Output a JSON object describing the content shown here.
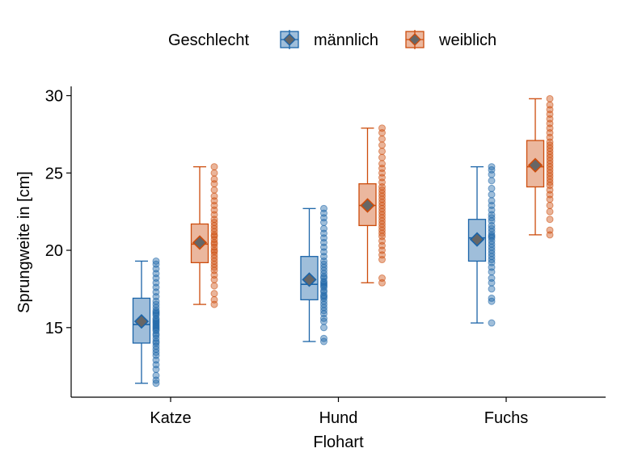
{
  "chart_data": {
    "type": "boxplot",
    "xlabel": "Flohart",
    "ylabel": "Sprungweite in [cm]",
    "categories": [
      "Katze",
      "Hund",
      "Fuchs"
    ],
    "ylim": [
      10.5,
      30.6
    ],
    "yticks": [
      15,
      20,
      25,
      30
    ],
    "grid": false,
    "legend": {
      "title": "Geschlecht",
      "position": "top",
      "entries": [
        "männlich",
        "weiblich"
      ]
    },
    "series": [
      {
        "name": "männlich",
        "color": "#1b64a8",
        "boxes": [
          {
            "category": "Katze",
            "min": 11.4,
            "q1": 14.0,
            "median": 15.2,
            "q3": 16.9,
            "max": 19.3,
            "mean": 15.4
          },
          {
            "category": "Hund",
            "min": 14.1,
            "q1": 16.8,
            "median": 17.8,
            "q3": 19.6,
            "max": 22.7,
            "mean": 18.1
          },
          {
            "category": "Fuchs",
            "min": 15.3,
            "q1": 19.3,
            "median": 20.8,
            "q3": 22.0,
            "max": 25.4,
            "mean": 20.7
          }
        ],
        "points": [
          [
            11.4,
            11.6,
            11.9,
            12.3,
            12.6,
            12.9,
            13.2,
            13.4,
            13.6,
            13.8,
            14.0,
            14.1,
            14.3,
            14.5,
            14.6,
            14.8,
            14.9,
            15.0,
            15.1,
            15.2,
            15.3,
            15.4,
            15.5,
            15.6,
            15.8,
            15.9,
            16.0,
            16.1,
            16.3,
            16.5,
            16.7,
            17.0,
            17.3,
            17.6,
            17.9,
            18.2,
            18.5,
            18.8,
            19.1,
            19.3
          ],
          [
            14.1,
            14.3,
            15.0,
            15.4,
            15.6,
            15.9,
            16.1,
            16.3,
            16.5,
            16.7,
            16.9,
            17.0,
            17.1,
            17.3,
            17.4,
            17.6,
            17.7,
            17.8,
            17.9,
            18.0,
            18.2,
            18.3,
            18.5,
            18.7,
            18.9,
            19.1,
            19.3,
            19.6,
            19.9,
            20.2,
            20.5,
            20.8,
            21.1,
            21.4,
            21.8,
            22.1,
            22.4,
            22.7
          ],
          [
            15.3,
            16.7,
            16.9,
            17.5,
            17.9,
            18.2,
            18.6,
            18.9,
            19.2,
            19.4,
            19.6,
            19.8,
            20.0,
            20.2,
            20.4,
            20.6,
            20.8,
            20.9,
            21.0,
            21.2,
            21.4,
            21.6,
            21.9,
            22.1,
            22.3,
            22.6,
            22.9,
            23.2,
            23.6,
            24.0,
            24.5,
            24.9,
            25.2,
            25.4
          ]
        ]
      },
      {
        "name": "weiblich",
        "color": "#cc4c0c",
        "boxes": [
          {
            "category": "Katze",
            "min": 16.5,
            "q1": 19.2,
            "median": 20.4,
            "q3": 21.7,
            "max": 25.4,
            "mean": 20.5
          },
          {
            "category": "Hund",
            "min": 17.9,
            "q1": 21.6,
            "median": 22.9,
            "q3": 24.3,
            "max": 27.9,
            "mean": 22.9
          },
          {
            "category": "Fuchs",
            "min": 21.0,
            "q1": 24.1,
            "median": 25.4,
            "q3": 27.1,
            "max": 29.8,
            "mean": 25.5
          }
        ],
        "points": [
          [
            16.5,
            16.8,
            17.2,
            17.7,
            18.1,
            18.4,
            18.7,
            18.9,
            19.1,
            19.3,
            19.5,
            19.7,
            19.9,
            20.0,
            20.2,
            20.4,
            20.5,
            20.7,
            20.9,
            21.0,
            21.2,
            21.4,
            21.6,
            21.8,
            22.0,
            22.3,
            22.6,
            22.9,
            23.2,
            23.5,
            23.9,
            24.3,
            24.6,
            25.0,
            25.4
          ],
          [
            17.9,
            18.2,
            19.4,
            19.7,
            20.0,
            20.3,
            20.6,
            20.9,
            21.1,
            21.3,
            21.5,
            21.7,
            21.9,
            22.1,
            22.3,
            22.5,
            22.7,
            22.9,
            23.1,
            23.3,
            23.5,
            23.7,
            23.9,
            24.1,
            24.4,
            24.7,
            25.0,
            25.3,
            25.6,
            26.0,
            26.4,
            26.8,
            27.2,
            27.6,
            27.9
          ],
          [
            21.0,
            21.3,
            22.0,
            22.5,
            22.9,
            23.3,
            23.6,
            23.9,
            24.2,
            24.4,
            24.6,
            24.8,
            25.0,
            25.2,
            25.4,
            25.6,
            25.8,
            26.0,
            26.2,
            26.4,
            26.6,
            26.8,
            27.0,
            27.3,
            27.6,
            27.9,
            28.2,
            28.5,
            28.8,
            29.1,
            29.4,
            29.8
          ]
        ]
      }
    ]
  }
}
